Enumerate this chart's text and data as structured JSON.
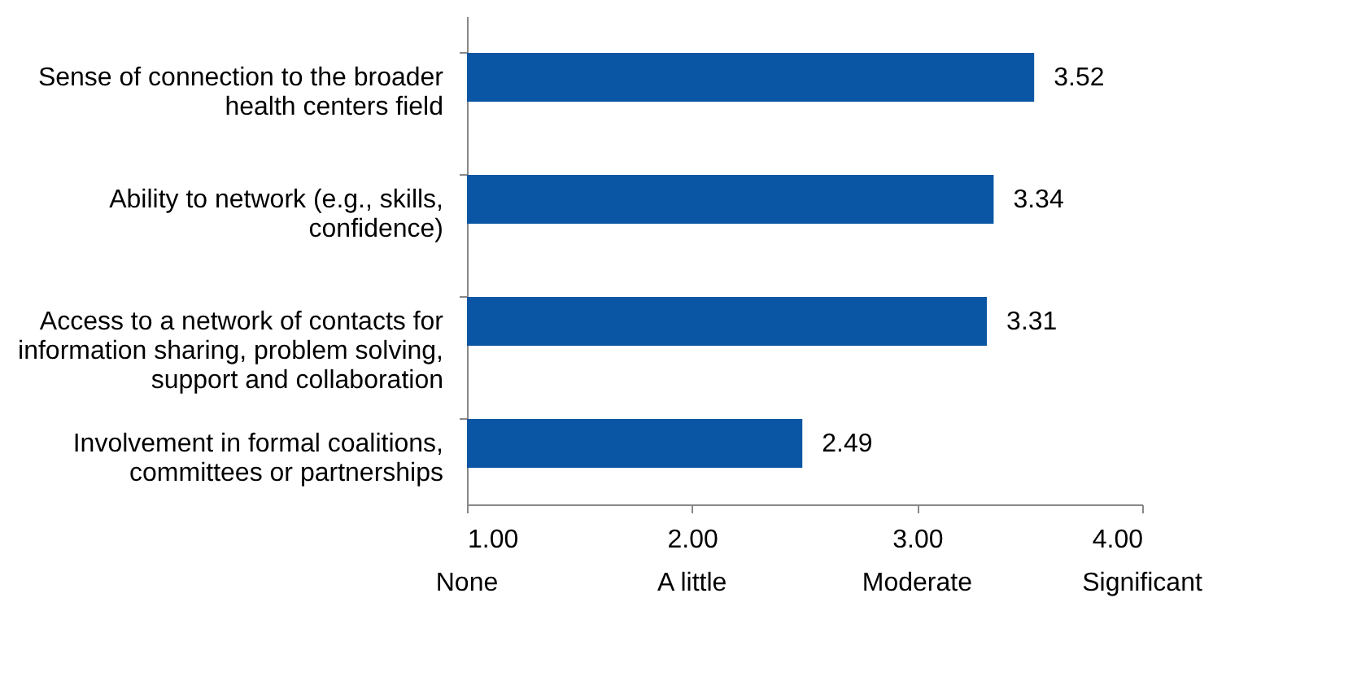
{
  "chart_data": {
    "type": "bar",
    "orientation": "horizontal",
    "categories": [
      "Sense of connection to the broader health centers field",
      "Ability to network (e.g., skills, confidence)",
      "Access to a network of contacts for information sharing, problem solving, support and collaboration",
      "Involvement in formal coalitions, committees or partnerships"
    ],
    "values": [
      3.52,
      3.34,
      3.31,
      2.49
    ],
    "color": "#0b56a4",
    "data_labels": true,
    "xlim": [
      1,
      4
    ],
    "xticks": [
      {
        "value": 1,
        "label": "1.00"
      },
      {
        "value": 2,
        "label": "2.00"
      },
      {
        "value": 3,
        "label": "3.00"
      },
      {
        "value": 4,
        "label": "4.00"
      }
    ],
    "annotations": [
      "None",
      "A little",
      "Moderate",
      "Significant"
    ],
    "grid": false
  }
}
